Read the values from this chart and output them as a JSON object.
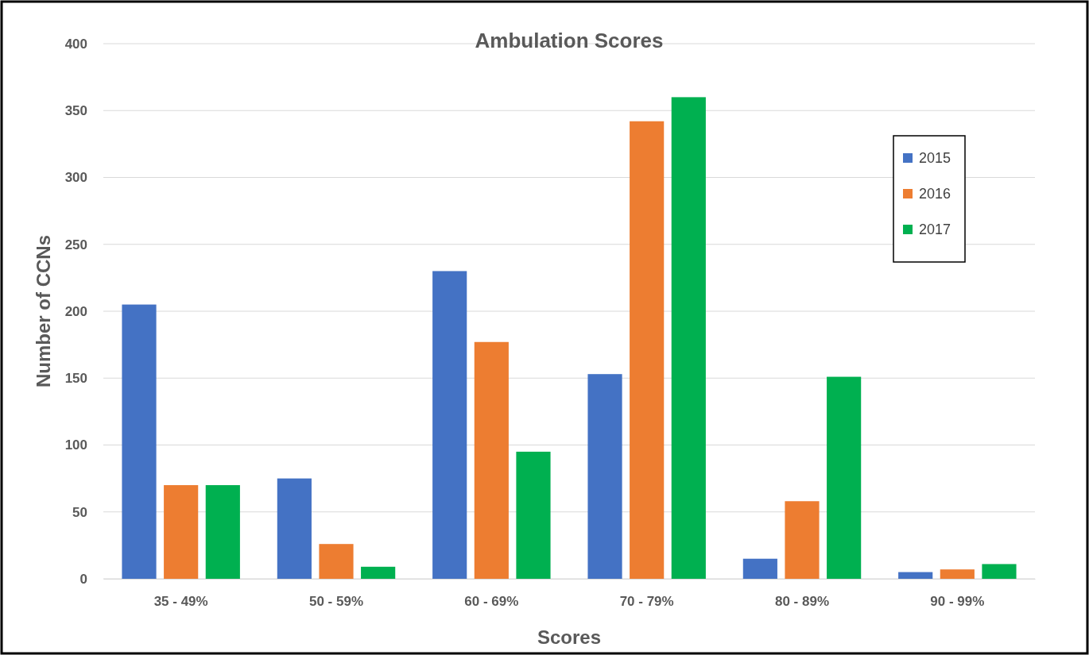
{
  "chart_data": {
    "type": "bar",
    "title": "Ambulation Scores",
    "xlabel": "Scores",
    "ylabel": "Number of CCNs",
    "categories": [
      "35 - 49%",
      "50 - 59%",
      "60 - 69%",
      "70 - 79%",
      "80 - 89%",
      "90 - 99%"
    ],
    "series": [
      {
        "name": "2015",
        "color": "#4472c4",
        "values": [
          205,
          75,
          230,
          153,
          15,
          5
        ]
      },
      {
        "name": "2016",
        "color": "#ed7d31",
        "values": [
          70,
          26,
          177,
          342,
          58,
          7
        ]
      },
      {
        "name": "2017",
        "color": "#00b050",
        "values": [
          70,
          9,
          95,
          360,
          151,
          11
        ]
      }
    ],
    "ylim": [
      0,
      400
    ],
    "yticks": [
      0,
      50,
      100,
      150,
      200,
      250,
      300,
      350,
      400
    ],
    "grid": "y",
    "legend": "top right"
  }
}
